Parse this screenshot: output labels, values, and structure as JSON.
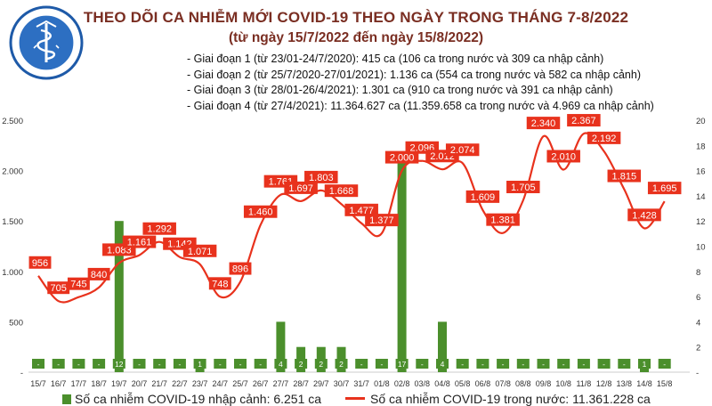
{
  "logo": {
    "top_text": "BỘ Y TẾ",
    "bottom_text": "MINISTRY OF HEALTH"
  },
  "header": {
    "title": "THEO DÕI CA NHIỄM MỚI COVID-19 THEO NGÀY TRONG THÁNG 7-8/2022",
    "subtitle": "(từ ngày 15/7/2022 đến ngày 15/8/2022)"
  },
  "notes": [
    "Giai đoạn 1 (từ 23/01-24/7/2020): 415 ca (106 ca trong nước và 309 ca nhập cảnh)",
    "Giai đoạn 2 (từ 25/7/2020-27/01/2021): 1.136 ca (554 ca trong nước và 582 ca nhập cảnh)",
    "Giai đoạn 3 (từ 28/01-26/4/2021): 1.301 ca (910 ca trong nước và 391 ca nhập cảnh)",
    "Giai đoạn 4 (từ 27/4/2021): 11.364.627 ca (11.359.658 ca trong nước và 4.969 ca nhập cảnh)"
  ],
  "colors": {
    "line": "#e8321d",
    "bar": "#4b8f2c",
    "title": "#7a2e22",
    "label_text": "#ffffff"
  },
  "chart_data": {
    "type": "bar+line",
    "categories": [
      "15/7",
      "16/7",
      "17/7",
      "18/7",
      "19/7",
      "20/7",
      "21/7",
      "22/7",
      "23/7",
      "24/7",
      "25/7",
      "26/7",
      "27/7",
      "28/7",
      "29/7",
      "30/7",
      "31/7",
      "01/8",
      "02/8",
      "03/8",
      "04/8",
      "05/8",
      "06/8",
      "07/8",
      "08/8",
      "09/8",
      "10/8",
      "11/8",
      "12/8",
      "13/8",
      "14/8",
      "15/8"
    ],
    "left_axis": {
      "ylim": [
        0,
        2500
      ],
      "ticks": [
        0,
        500,
        1000,
        1500,
        2000,
        2500
      ],
      "tick_labels": [
        "-",
        "500",
        "1.000",
        "1.500",
        "2.000",
        "2.500"
      ]
    },
    "right_axis": {
      "ylim": [
        0,
        20
      ],
      "ticks": [
        0,
        2,
        4,
        6,
        8,
        10,
        12,
        14,
        16,
        18,
        20
      ],
      "tick_labels": [
        "-",
        "2",
        "4",
        "6",
        "8",
        "10",
        "12",
        "14",
        "16",
        "18",
        "20"
      ]
    },
    "series": [
      {
        "name": "Số ca nhiễm COVID-19 trong nước: 11.361.228 ca",
        "kind": "line",
        "axis": "left",
        "values": [
          956,
          705,
          745,
          840,
          1083,
          1161,
          1292,
          1142,
          1071,
          748,
          896,
          1460,
          1761,
          1697,
          1803,
          1668,
          1477,
          1377,
          2000,
          2096,
          2012,
          2074,
          1609,
          1381,
          1705,
          2340,
          2010,
          2367,
          2192,
          1815,
          1428,
          1695
        ],
        "labels": [
          "956",
          "705",
          "745",
          "840",
          "1.083",
          "1.161",
          "1.292",
          "1.142",
          "1.071",
          "748",
          "896",
          "1.460",
          "1.761",
          "1.697",
          "1.803",
          "1.668",
          "1.477",
          "1.377",
          "2.000",
          "2.096",
          "2.012",
          "2.074",
          "1.609",
          "1.381",
          "1.705",
          "2.340",
          "2.010",
          "2.367",
          "2.192",
          "1.815",
          "1.428",
          "1.695"
        ]
      },
      {
        "name": "Số ca nhiễm COVID-19 nhập cảnh: 6.251 ca",
        "kind": "bar",
        "axis": "right",
        "values": [
          0,
          0,
          0,
          0,
          12,
          0,
          0,
          0,
          1,
          0,
          0,
          0,
          4,
          2,
          2,
          2,
          0,
          0,
          17,
          0,
          4,
          0,
          0,
          0,
          0,
          0,
          0,
          0,
          0,
          0,
          1,
          0
        ],
        "labels": [
          "-",
          "-",
          "-",
          "-",
          "12",
          "-",
          "-",
          "-",
          "1",
          "-",
          "-",
          "-",
          "4",
          "2",
          "2",
          "2",
          "-",
          "-",
          "17",
          "-",
          "4",
          "-",
          "-",
          "-",
          "-",
          "-",
          "-",
          "-",
          "-",
          "-",
          "1",
          "-"
        ]
      }
    ],
    "legend_position": "bottom",
    "grid": false
  }
}
